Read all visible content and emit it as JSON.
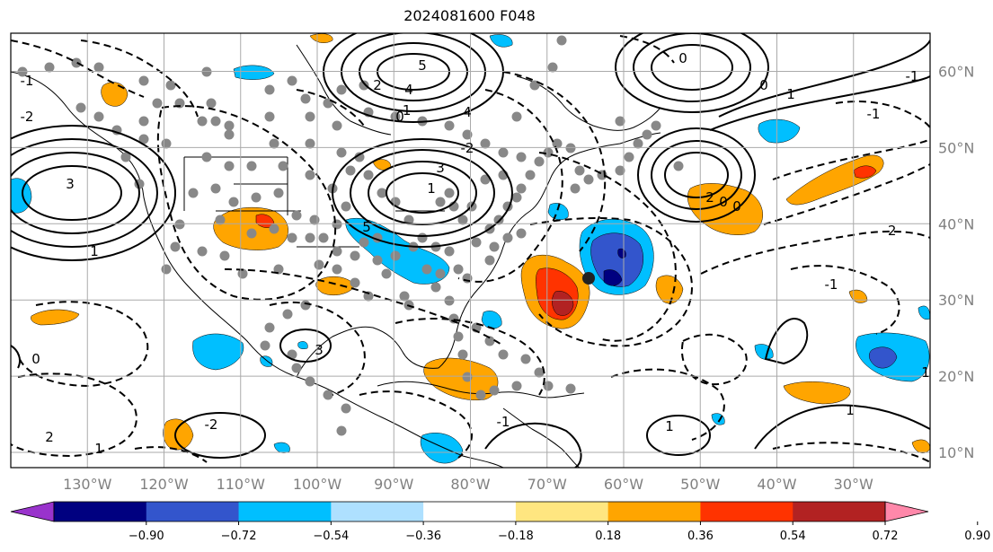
{
  "title": "2024081600 F048",
  "lon_ticks": [
    "130°W",
    "120°W",
    "110°W",
    "100°W",
    "90°W",
    "80°W",
    "70°W",
    "60°W",
    "50°W",
    "40°W",
    "30°W"
  ],
  "lat_ticks": [
    "60°N",
    "50°N",
    "40°N",
    "30°N",
    "20°N",
    "10°N"
  ],
  "map_extent": {
    "lon_min": -140,
    "lon_max": -20,
    "lat_min": 8,
    "lat_max": 65
  },
  "colorbar": {
    "ticks": [
      "−0.90",
      "−0.72",
      "−0.54",
      "−0.36",
      "−0.18",
      "0.18",
      "0.36",
      "0.54",
      "0.72",
      "0.90"
    ],
    "colors": [
      "#9933cc",
      "#000080",
      "#3355cc",
      "#00bfff",
      "#aee0ff",
      "#ffffff",
      "#ffe680",
      "#ffa500",
      "#ff3300",
      "#b22222",
      "#ff88aa"
    ]
  },
  "colors": {
    "positive_fill": "#ffa500",
    "positive_mid": "#ff3300",
    "positive_strong": "#b22222",
    "negative_fill": "#00bfff",
    "negative_mid": "#3355cc",
    "negative_strong": "#000080",
    "marker": "#888888",
    "grid": "#aaaaaa"
  },
  "contour_labels": [
    "1",
    "3",
    "5",
    "4",
    "2",
    "0",
    "-1",
    "-2",
    "1",
    "3",
    "5",
    "4",
    "-2",
    "-1",
    "0",
    "0",
    "1",
    "-1",
    "-1",
    "2",
    "0",
    "0",
    "-2",
    "-1",
    "1",
    "-1",
    "1",
    "-2",
    "1",
    "3",
    "2",
    "1",
    "0"
  ]
}
